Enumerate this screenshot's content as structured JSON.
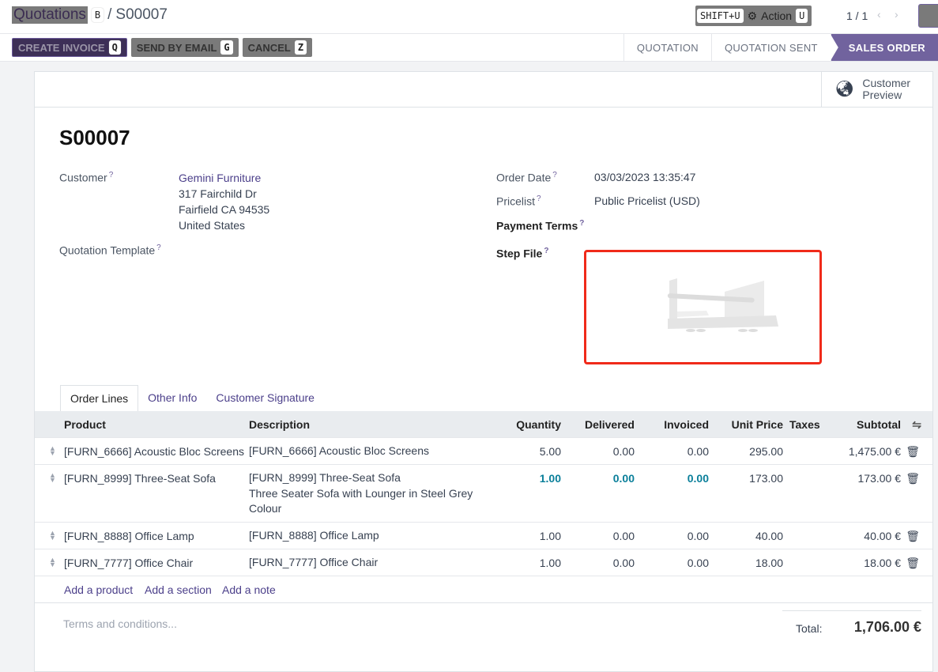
{
  "breadcrumb": {
    "parent": "Quotations",
    "parent_hint": "B",
    "current": "S00007"
  },
  "topbar": {
    "shift_hint": "SHIFT+U",
    "action_label": "Action",
    "action_hint": "U",
    "pager": "1 / 1"
  },
  "buttons": {
    "create_invoice": "CREATE INVOICE",
    "create_hint": "Q",
    "send_email": "SEND BY EMAIL",
    "send_hint": "G",
    "cancel": "CANCEL",
    "cancel_hint": "Z"
  },
  "status": [
    "QUOTATION",
    "QUOTATION SENT",
    "SALES ORDER"
  ],
  "customer_preview": [
    "Customer",
    "Preview"
  ],
  "record": {
    "name": "S00007",
    "customer_label": "Customer",
    "customer_name": "Gemini Furniture",
    "address": [
      "317 Fairchild Dr",
      "Fairfield CA 94535",
      "United States"
    ],
    "template_label": "Quotation Template",
    "order_date_label": "Order Date",
    "order_date": "03/03/2023 13:35:47",
    "pricelist_label": "Pricelist",
    "pricelist": "Public Pricelist (USD)",
    "payment_terms_label": "Payment Terms",
    "step_file_label": "Step File",
    "help": "?"
  },
  "tabs": [
    "Order Lines",
    "Other Info",
    "Customer Signature"
  ],
  "table": {
    "headers": [
      "Product",
      "Description",
      "Quantity",
      "Delivered",
      "Invoiced",
      "Unit Price",
      "Taxes",
      "Subtotal"
    ],
    "rows": [
      {
        "product": "[FURN_6666] Acoustic Bloc Screens",
        "desc": [
          "[FURN_6666] Acoustic Bloc Screens"
        ],
        "qty": "5.00",
        "delivered": "0.00",
        "invoiced": "0.00",
        "price": "295.00",
        "subtotal": "1,475.00 €"
      },
      {
        "product": "[FURN_8999] Three-Seat Sofa",
        "desc": [
          "[FURN_8999] Three-Seat Sofa",
          "Three Seater Sofa with Lounger in Steel Grey",
          "Colour"
        ],
        "qty": "1.00",
        "delivered": "0.00",
        "invoiced": "0.00",
        "price": "173.00",
        "subtotal": "173.00 €",
        "highlight": true
      },
      {
        "product": "[FURN_8888] Office Lamp",
        "desc": [
          "[FURN_8888] Office Lamp"
        ],
        "qty": "1.00",
        "delivered": "0.00",
        "invoiced": "0.00",
        "price": "40.00",
        "subtotal": "40.00 €"
      },
      {
        "product": "[FURN_7777] Office Chair",
        "desc": [
          "[FURN_7777] Office Chair"
        ],
        "qty": "1.00",
        "delivered": "0.00",
        "invoiced": "0.00",
        "price": "18.00",
        "subtotal": "18.00 €"
      }
    ],
    "add": [
      "Add a product",
      "Add a section",
      "Add a note"
    ]
  },
  "terms_placeholder": "Terms and conditions...",
  "total": {
    "label": "Total:",
    "value": "1,706.00 €"
  },
  "colors": {
    "accent": "#71639e",
    "highlight": "#0a7f9a",
    "step_border": "#f02a1a"
  }
}
